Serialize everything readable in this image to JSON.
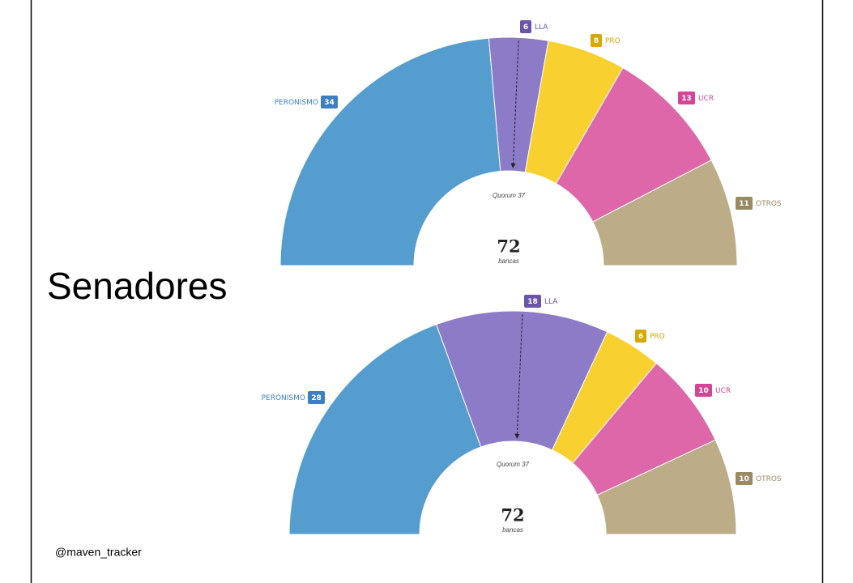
{
  "title": "Senadores",
  "credit": "@maven_tracker",
  "chart_data": [
    {
      "type": "half-donut",
      "categories": [
        "PERONISMO",
        "LLA",
        "PRO",
        "UCR",
        "OTROS"
      ],
      "values": [
        34,
        6,
        8,
        13,
        11
      ],
      "colors": [
        "#559ccf",
        "#8c7bc6",
        "#f8d030",
        "#dd67a8",
        "#bcad88"
      ],
      "label_colors": [
        "#3d7fc1",
        "#6a55a8",
        "#d6a800",
        "#d44595",
        "#9a8a61"
      ],
      "total": 72,
      "total_label": "bancas",
      "quorum": {
        "value": 37,
        "label": "Quorum 37"
      }
    },
    {
      "type": "half-donut",
      "categories": [
        "PERONISMO",
        "LLA",
        "PRO",
        "UCR",
        "OTROS"
      ],
      "values": [
        28,
        18,
        6,
        10,
        10
      ],
      "colors": [
        "#559ccf",
        "#8c7bc6",
        "#f8d030",
        "#dd67a8",
        "#bcad88"
      ],
      "label_colors": [
        "#3d7fc1",
        "#6a55a8",
        "#d6a800",
        "#d44595",
        "#9a8a61"
      ],
      "total": 72,
      "total_label": "bancas",
      "quorum": {
        "value": 37,
        "label": "Quorum 37"
      }
    }
  ]
}
